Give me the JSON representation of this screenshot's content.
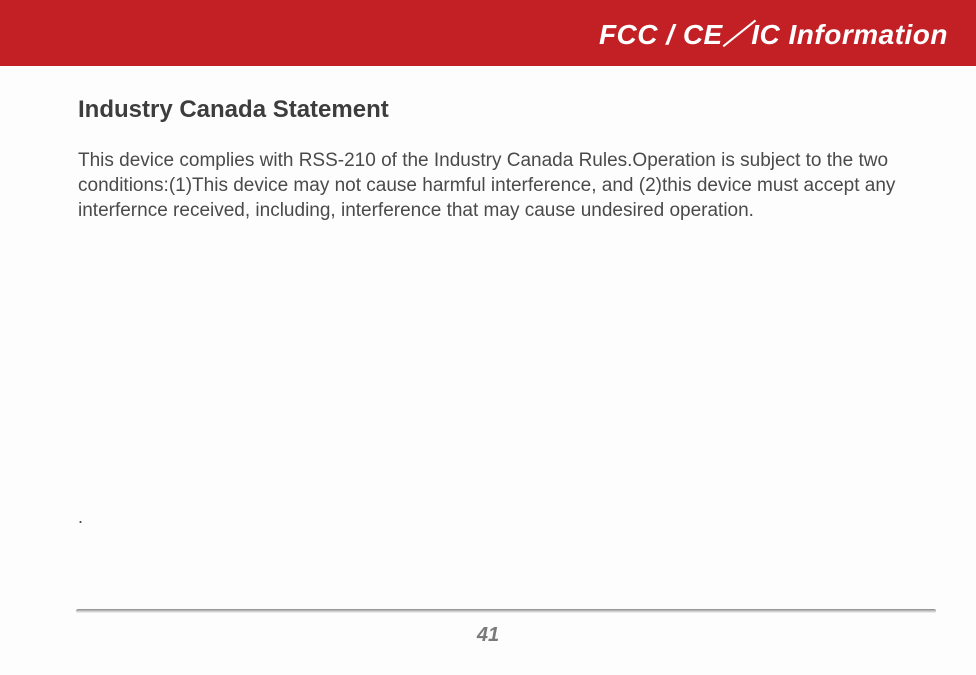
{
  "header": {
    "title_html": "FCC / CE／IC Information",
    "bg_color": "#c32026",
    "text_color": "#ffffff"
  },
  "section": {
    "heading": "Industry Canada Statement",
    "heading_color": "#3d3d3d",
    "body": "This device complies with RSS-210 of the Industry Canada Rules.Operation is subject to the two conditions:(1)This device may not cause harmful interference, and (2)this device must accept any interfernce received, including, interference that may cause undesired operation.",
    "body_color": "#4a4a4a"
  },
  "stray_dot": ".",
  "page_number": "41",
  "page_number_color": "#7a7a7a",
  "rule_color_top": "#8a8a8a",
  "rule_color_bottom": "#f6f6f6"
}
